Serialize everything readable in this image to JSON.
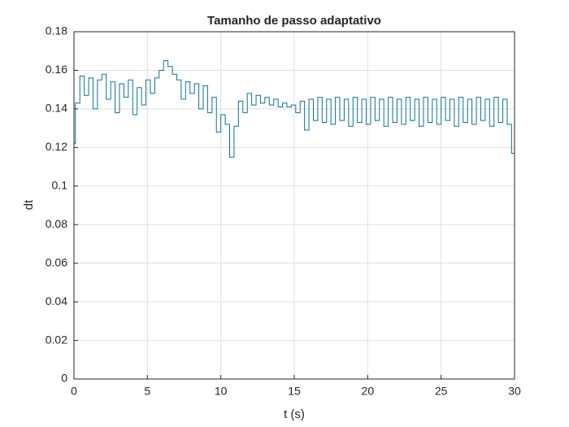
{
  "chart_data": {
    "type": "stairs",
    "title": "Tamanho de passo adaptativo",
    "x_label": "t (s)",
    "y_label": "dt",
    "xlim": [
      0,
      30
    ],
    "ylim": [
      0,
      0.18
    ],
    "xticks": [
      0,
      5,
      10,
      15,
      20,
      25,
      30
    ],
    "yticks": [
      0,
      0.02,
      0.04,
      0.06,
      0.08,
      0.1,
      0.12,
      0.14,
      0.16,
      0.18
    ],
    "grid": true,
    "series": [
      {
        "color": "#0e7193",
        "x": [
          0,
          0.1,
          0.4,
          0.7,
          1.0,
          1.3,
          1.6,
          1.9,
          2.2,
          2.5,
          2.8,
          3.1,
          3.4,
          3.7,
          4.0,
          4.3,
          4.6,
          4.9,
          5.2,
          5.5,
          5.8,
          6.1,
          6.4,
          6.7,
          7.0,
          7.3,
          7.6,
          7.9,
          8.2,
          8.5,
          8.8,
          9.1,
          9.4,
          9.7,
          10.0,
          10.3,
          10.6,
          10.9,
          11.2,
          11.5,
          11.8,
          12.1,
          12.4,
          12.7,
          13.0,
          13.3,
          13.6,
          13.9,
          14.2,
          14.5,
          14.8,
          15.1,
          15.4,
          15.7,
          16.0,
          16.3,
          16.6,
          16.9,
          17.2,
          17.5,
          17.8,
          18.1,
          18.4,
          18.7,
          19.0,
          19.3,
          19.6,
          19.9,
          20.2,
          20.5,
          20.8,
          21.1,
          21.4,
          21.7,
          22.0,
          22.3,
          22.6,
          22.9,
          23.2,
          23.5,
          23.8,
          24.1,
          24.4,
          24.7,
          25.0,
          25.3,
          25.6,
          25.9,
          26.2,
          26.5,
          26.8,
          27.1,
          27.4,
          27.7,
          28.0,
          28.3,
          28.6,
          28.9,
          29.2,
          29.5,
          29.8
        ],
        "values": [
          0.122,
          0.143,
          0.157,
          0.147,
          0.156,
          0.14,
          0.155,
          0.158,
          0.145,
          0.154,
          0.138,
          0.153,
          0.146,
          0.155,
          0.137,
          0.151,
          0.142,
          0.155,
          0.148,
          0.156,
          0.16,
          0.165,
          0.162,
          0.158,
          0.155,
          0.145,
          0.154,
          0.148,
          0.153,
          0.14,
          0.152,
          0.138,
          0.146,
          0.128,
          0.137,
          0.132,
          0.115,
          0.131,
          0.144,
          0.138,
          0.148,
          0.142,
          0.147,
          0.143,
          0.146,
          0.142,
          0.145,
          0.141,
          0.143,
          0.141,
          0.142,
          0.138,
          0.144,
          0.129,
          0.145,
          0.134,
          0.146,
          0.133,
          0.145,
          0.132,
          0.146,
          0.134,
          0.145,
          0.131,
          0.146,
          0.133,
          0.145,
          0.132,
          0.146,
          0.134,
          0.145,
          0.131,
          0.146,
          0.133,
          0.145,
          0.132,
          0.146,
          0.134,
          0.145,
          0.131,
          0.146,
          0.133,
          0.145,
          0.132,
          0.146,
          0.134,
          0.145,
          0.131,
          0.146,
          0.133,
          0.145,
          0.132,
          0.146,
          0.134,
          0.145,
          0.131,
          0.146,
          0.133,
          0.145,
          0.132,
          0.117
        ]
      }
    ]
  }
}
